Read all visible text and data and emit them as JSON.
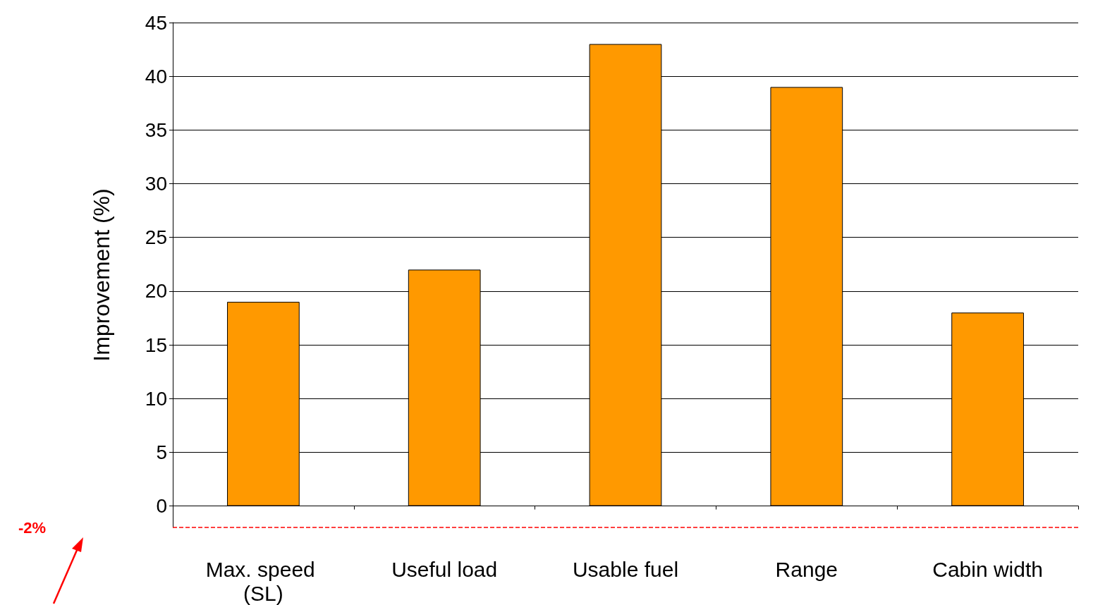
{
  "chart_data": {
    "type": "bar",
    "ylabel": "Improvement (%)",
    "categories": [
      "Max. speed (SL)",
      "Useful load",
      "Usable fuel",
      "Range",
      "Cabin width"
    ],
    "values": [
      19,
      22,
      43,
      39,
      18
    ],
    "color": "#ff9900",
    "ylim": [
      -2,
      45
    ],
    "yticks": [
      0,
      5,
      10,
      15,
      20,
      25,
      30,
      35,
      40,
      45
    ],
    "grid": "y",
    "ref_lines": [
      {
        "axis": "y",
        "value": -2,
        "label": "-2%",
        "color": "#ff0000",
        "line_style": "dashed"
      }
    ]
  }
}
